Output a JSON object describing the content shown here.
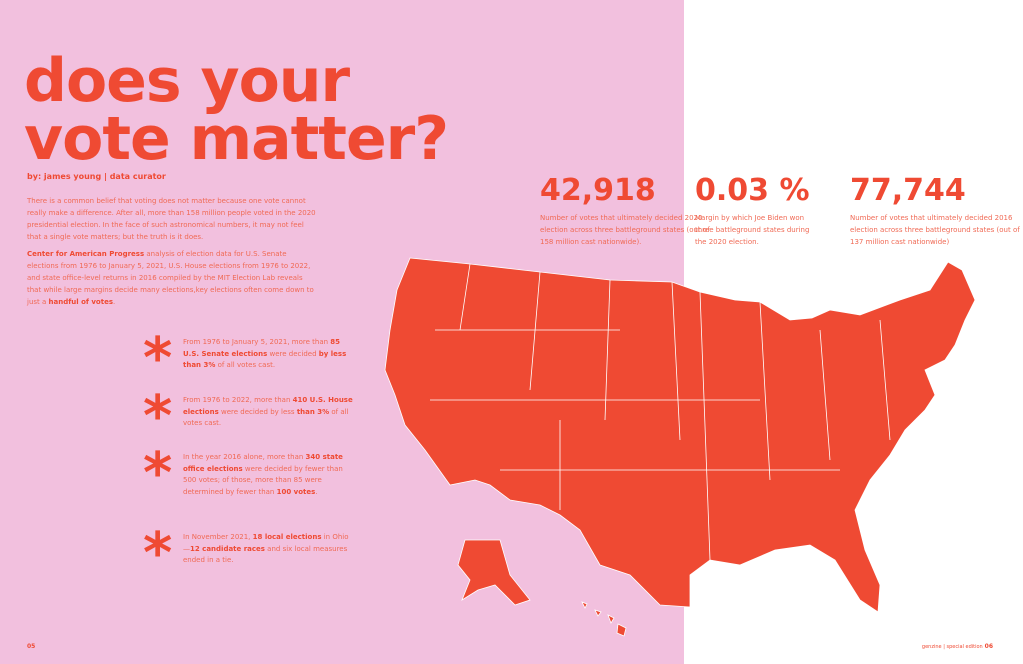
{
  "title_line1": "does your",
  "title_line2": "vote matter?",
  "byline": "by: james young | data curator",
  "intro_p1": "There is a common belief that voting does not matter because one vote cannot really make a difference. After all, more than 158 million people voted in the 2020 presidential election.  In the face of such astronomical numbers, it may not feel that a single vote matters; but the truth is it does.",
  "intro_p2_bold": "Center for American Progress",
  "intro_p2": " analysis of election data for U.S. Senate elections from 1976 to January 5, 2021, U.S. House elections from 1976  to 2022, and state office-level returns in 2016 compiled by the MIT Election Lab reveals that while large margins decide many elections,key elections often come down to just a ",
  "intro_p2_end": "handful of votes",
  "facts": [
    {
      "a": "From 1976 to January 5, 2021, more than ",
      "b": "85 U.S. Senate elections",
      "c": " were decided ",
      "d": "by less than 3%",
      "e": " of all votes cast."
    },
    {
      "a": "From 1976 to 2022, more than ",
      "b": "410 U.S. House elections",
      "c": " were decided by less ",
      "d": "than 3%",
      "e": " of all votes cast."
    },
    {
      "a": "In the year 2016 alone, more than ",
      "b": "340 state office elections",
      "c": " were decided by fewer than 500 votes; of those, more than 85 were determined by fewer than ",
      "d": "100 votes",
      "e": "."
    },
    {
      "a": "In November 2021, ",
      "b": "18 local elections",
      "c": " in Ohio—",
      "d": "12 candidate races",
      "e": " and six local measures ended in a tie."
    }
  ],
  "stats": [
    {
      "value": "42,918",
      "desc": "Number of votes that ultimately decided 2020 election across three battleground states (out of 158 million cast nationwide)."
    },
    {
      "value": "0.03 %",
      "desc": "Margin by which Joe Biden won three battleground states during the 2020 election."
    },
    {
      "value": "77,744",
      "desc": "Number of votes that ultimately decided 2016 election across three battleground states (out of 137 million cast nationwide)"
    }
  ],
  "page_left": "05",
  "footer_right": "genzine | special edition",
  "page_right": "06",
  "colors": {
    "accent": "#ef4a33",
    "pink": "#f2c0de"
  }
}
